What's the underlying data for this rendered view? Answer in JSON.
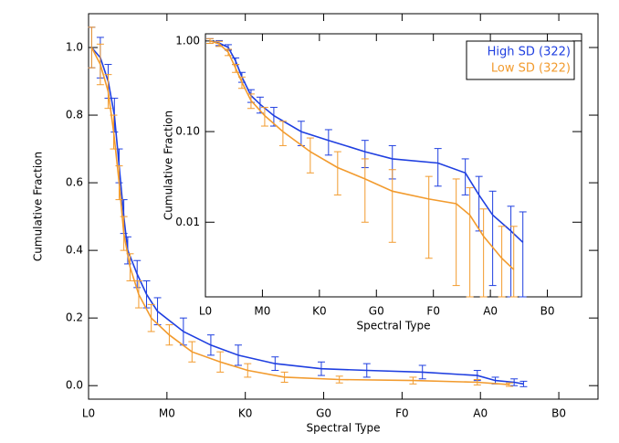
{
  "chart_data": [
    {
      "type": "line",
      "xlabel": "Spectral Type",
      "ylabel": "Cumulative Fraction",
      "xlim": [
        0,
        6.5
      ],
      "ylim": [
        -0.04,
        1.1
      ],
      "xticks": [
        {
          "value": 0,
          "label": "L0"
        },
        {
          "value": 1,
          "label": "M0"
        },
        {
          "value": 2,
          "label": "K0"
        },
        {
          "value": 3,
          "label": "G0"
        },
        {
          "value": 4,
          "label": "F0"
        },
        {
          "value": 5,
          "label": "A0"
        },
        {
          "value": 6,
          "label": "B0"
        }
      ],
      "yticks": [
        {
          "value": 0,
          "label": "0.0"
        },
        0.2,
        0.4,
        0.6,
        0.8,
        {
          "value": 1,
          "label": "1.0"
        }
      ],
      "series": [
        {
          "name": "High SD (322)",
          "color": "#1f3fe0",
          "x": [
            0.04,
            0.15,
            0.25,
            0.33,
            0.39,
            0.45,
            0.5,
            0.62,
            0.74,
            0.88,
            1.21,
            1.56,
            1.91,
            2.38,
            2.97,
            3.55,
            4.26,
            4.96,
            5.19,
            5.43,
            5.55
          ],
          "values": [
            1.0,
            0.97,
            0.9,
            0.8,
            0.65,
            0.5,
            0.4,
            0.33,
            0.27,
            0.22,
            0.16,
            0.12,
            0.09,
            0.065,
            0.05,
            0.045,
            0.04,
            0.03,
            0.015,
            0.01,
            0.005
          ],
          "err": [
            0.06,
            0.06,
            0.05,
            0.05,
            0.05,
            0.05,
            0.04,
            0.04,
            0.04,
            0.04,
            0.04,
            0.03,
            0.03,
            0.02,
            0.02,
            0.02,
            0.02,
            0.015,
            0.01,
            0.01,
            0.008
          ]
        },
        {
          "name": "Low SD (322)",
          "color": "#f29b2e",
          "x": [
            0.04,
            0.15,
            0.25,
            0.32,
            0.39,
            0.45,
            0.53,
            0.64,
            0.8,
            1.03,
            1.32,
            1.68,
            2.03,
            2.5,
            3.2,
            4.14,
            4.96,
            5.37
          ],
          "values": [
            1.0,
            0.95,
            0.87,
            0.75,
            0.6,
            0.45,
            0.35,
            0.27,
            0.2,
            0.15,
            0.1,
            0.07,
            0.045,
            0.025,
            0.018,
            0.015,
            0.01,
            0.003
          ],
          "err": [
            0.06,
            0.06,
            0.05,
            0.05,
            0.05,
            0.05,
            0.04,
            0.04,
            0.04,
            0.03,
            0.03,
            0.03,
            0.02,
            0.015,
            0.01,
            0.01,
            0.008,
            0.005
          ]
        }
      ]
    },
    {
      "type": "line",
      "xlabel": "Spectral Type",
      "ylabel": "Cumulative Fraction",
      "log_y": true,
      "legend": "upper right",
      "xlim": [
        0,
        6.6
      ],
      "ylim": [
        0.0015,
        1.2
      ],
      "xticks": [
        {
          "value": 0,
          "label": "L0"
        },
        {
          "value": 1,
          "label": "M0"
        },
        {
          "value": 2,
          "label": "K0"
        },
        {
          "value": 3,
          "label": "G0"
        },
        {
          "value": 4,
          "label": "F0"
        },
        {
          "value": 5,
          "label": "A0"
        },
        {
          "value": 6,
          "label": "B0"
        }
      ],
      "yticks": [
        {
          "value": 1,
          "label": "1.00"
        },
        {
          "value": 0.1,
          "label": "0.10"
        },
        0.01
      ],
      "series": [
        {
          "name": "High SD (322)",
          "color": "#1f3fe0",
          "x": [
            0.08,
            0.24,
            0.4,
            0.53,
            0.64,
            0.8,
            0.96,
            1.2,
            1.68,
            2.16,
            2.8,
            3.28,
            4.08,
            4.56,
            4.8,
            5.04,
            5.36,
            5.57
          ],
          "values": [
            1.0,
            0.95,
            0.85,
            0.6,
            0.4,
            0.25,
            0.2,
            0.15,
            0.1,
            0.08,
            0.06,
            0.05,
            0.045,
            0.035,
            0.02,
            0.012,
            0.008,
            0.006
          ],
          "err": [
            0.06,
            0.06,
            0.06,
            0.05,
            0.05,
            0.04,
            0.04,
            0.035,
            0.03,
            0.025,
            0.02,
            0.02,
            0.02,
            0.015,
            0.012,
            0.01,
            0.007,
            0.007
          ]
        },
        {
          "name": "Low SD (322)",
          "color": "#f29b2e",
          "x": [
            0.08,
            0.24,
            0.4,
            0.53,
            0.64,
            0.8,
            1.04,
            1.36,
            1.84,
            2.32,
            2.8,
            3.28,
            3.92,
            4.4,
            4.64,
            4.88,
            5.2,
            5.41
          ],
          "values": [
            1.0,
            0.93,
            0.75,
            0.5,
            0.35,
            0.22,
            0.15,
            0.1,
            0.06,
            0.04,
            0.03,
            0.022,
            0.018,
            0.016,
            0.012,
            0.007,
            0.004,
            0.003
          ],
          "err": [
            0.06,
            0.06,
            0.06,
            0.05,
            0.05,
            0.04,
            0.035,
            0.03,
            0.025,
            0.02,
            0.02,
            0.016,
            0.014,
            0.014,
            0.012,
            0.007,
            0.005,
            0.006
          ]
        }
      ]
    }
  ]
}
